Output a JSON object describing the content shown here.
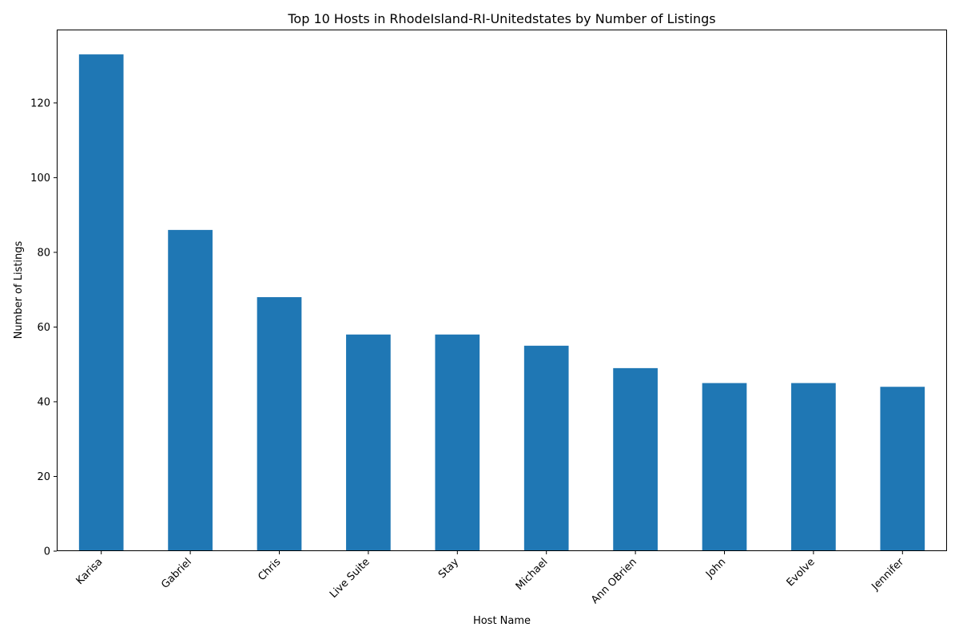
{
  "chart_data": {
    "type": "bar",
    "title": "Top 10 Hosts in RhodeIsland-RI-Unitedstates by Number of Listings",
    "xlabel": "Host Name",
    "ylabel": "Number of Listings",
    "categories": [
      "Karisa",
      "Gabriel",
      "Chris",
      "Live Suite",
      "Stay",
      "Michael",
      "Ann OBrien",
      "John",
      "Evolve",
      "Jennifer"
    ],
    "values": [
      133,
      86,
      68,
      58,
      58,
      55,
      49,
      45,
      45,
      44
    ],
    "ylim": [
      0,
      139.65
    ],
    "yticks": [
      0,
      20,
      40,
      60,
      80,
      100,
      120
    ],
    "grid": false,
    "legend": "none",
    "colors": {
      "bar": "#1f77b4",
      "axis": "#000000",
      "background": "#ffffff"
    }
  }
}
